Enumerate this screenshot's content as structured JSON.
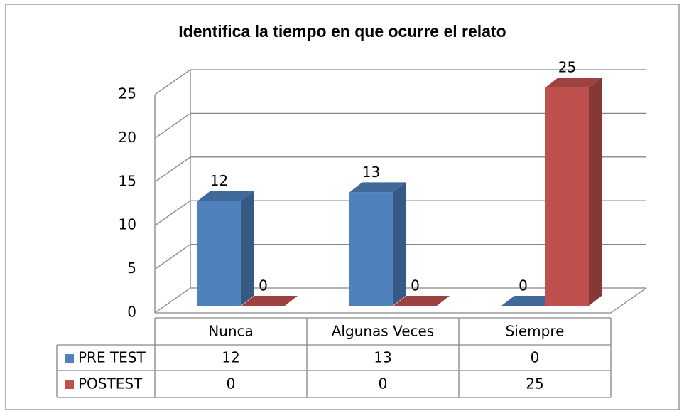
{
  "chart_data": {
    "type": "bar3d",
    "title": "Identifica la tiempo en que ocurre el relato",
    "categories": [
      "Nunca",
      "Algunas Veces",
      "Siempre"
    ],
    "series": [
      {
        "name": "PRE TEST",
        "color": "#4f81bd",
        "values": [
          12,
          13,
          0
        ]
      },
      {
        "name": "POSTEST",
        "color": "#c0504d",
        "values": [
          0,
          0,
          25
        ]
      }
    ],
    "ylim": [
      0,
      25
    ],
    "yticks": [
      0,
      5,
      10,
      15,
      20,
      25
    ],
    "grid": true,
    "data_table": true
  }
}
